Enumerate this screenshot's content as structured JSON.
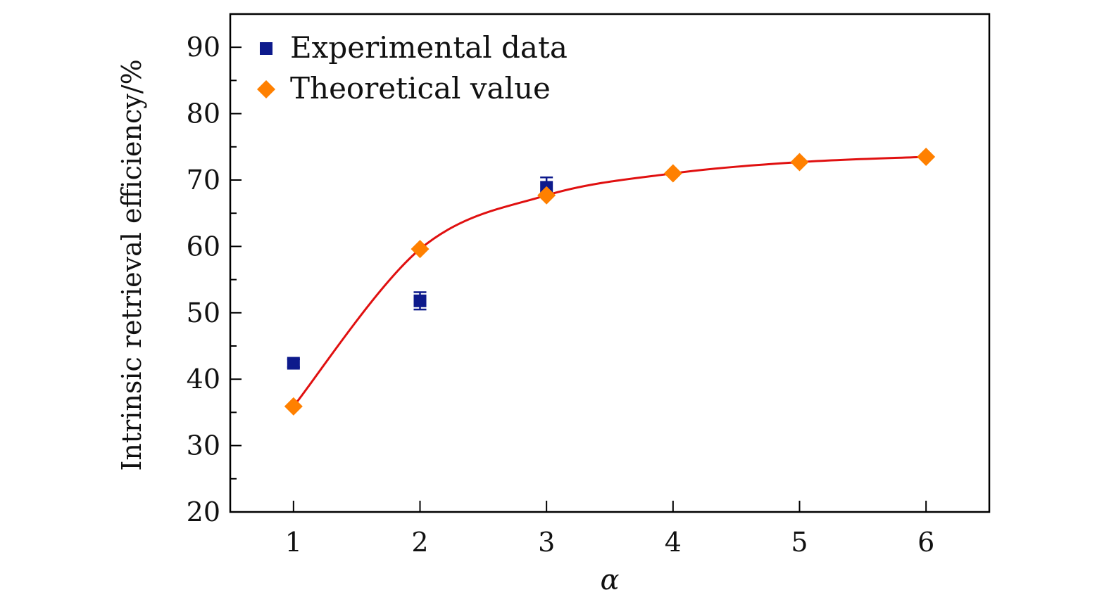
{
  "chart_data": {
    "type": "scatter",
    "title": "",
    "xlabel": "α",
    "ylabel": "Intrinsic retrieval efficiency/%",
    "xlim": [
      0.5,
      6.5
    ],
    "ylim": [
      20,
      95
    ],
    "xticks": [
      1,
      2,
      3,
      4,
      5,
      6
    ],
    "xtick_labels": [
      "1",
      "2",
      "3",
      "4",
      "5",
      "6"
    ],
    "yticks": [
      20,
      30,
      40,
      50,
      60,
      70,
      80,
      90
    ],
    "ytick_labels": [
      "20",
      "30",
      "40",
      "50",
      "60",
      "70",
      "80",
      "90"
    ],
    "grid": false,
    "legend_position": "top-left",
    "series": [
      {
        "name": "Experimental data",
        "marker": "square",
        "color": "#0d1a8c",
        "x": [
          1,
          2,
          3
        ],
        "y": [
          42.4,
          51.8,
          68.9
        ],
        "yerr": [
          0.6,
          1.3,
          1.5
        ]
      },
      {
        "name": "Theoretical value",
        "marker": "diamond",
        "color": "#ff8000",
        "x": [
          1,
          2,
          3,
          4,
          5,
          6
        ],
        "y": [
          35.9,
          59.6,
          67.7,
          71.0,
          72.7,
          73.5
        ]
      }
    ],
    "fit_curve": {
      "color": "#e01010",
      "x_range": [
        1,
        6
      ]
    }
  }
}
